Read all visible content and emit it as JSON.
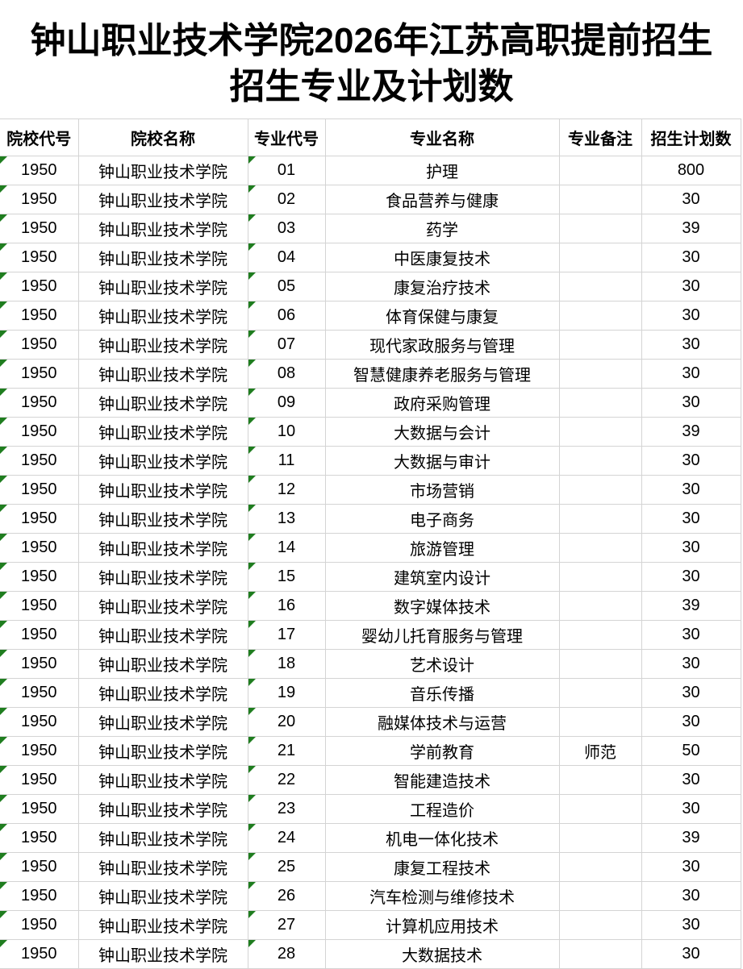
{
  "title": {
    "line1": "钟山职业技术学院2026年江苏高职提前招生",
    "line2": "招生专业及计划数"
  },
  "table": {
    "headers": [
      "院校代号",
      "院校名称",
      "专业代号",
      "专业名称",
      "专业备注",
      "招生计划数"
    ],
    "rows": [
      {
        "college_code": "1950",
        "college_name": "钟山职业技术学院",
        "major_code": "01",
        "major_name": "护理",
        "major_note": "",
        "plan_count": "800"
      },
      {
        "college_code": "1950",
        "college_name": "钟山职业技术学院",
        "major_code": "02",
        "major_name": "食品营养与健康",
        "major_note": "",
        "plan_count": "30"
      },
      {
        "college_code": "1950",
        "college_name": "钟山职业技术学院",
        "major_code": "03",
        "major_name": "药学",
        "major_note": "",
        "plan_count": "39"
      },
      {
        "college_code": "1950",
        "college_name": "钟山职业技术学院",
        "major_code": "04",
        "major_name": "中医康复技术",
        "major_note": "",
        "plan_count": "30"
      },
      {
        "college_code": "1950",
        "college_name": "钟山职业技术学院",
        "major_code": "05",
        "major_name": "康复治疗技术",
        "major_note": "",
        "plan_count": "30"
      },
      {
        "college_code": "1950",
        "college_name": "钟山职业技术学院",
        "major_code": "06",
        "major_name": "体育保健与康复",
        "major_note": "",
        "plan_count": "30"
      },
      {
        "college_code": "1950",
        "college_name": "钟山职业技术学院",
        "major_code": "07",
        "major_name": "现代家政服务与管理",
        "major_note": "",
        "plan_count": "30"
      },
      {
        "college_code": "1950",
        "college_name": "钟山职业技术学院",
        "major_code": "08",
        "major_name": "智慧健康养老服务与管理",
        "major_note": "",
        "plan_count": "30"
      },
      {
        "college_code": "1950",
        "college_name": "钟山职业技术学院",
        "major_code": "09",
        "major_name": "政府采购管理",
        "major_note": "",
        "plan_count": "30"
      },
      {
        "college_code": "1950",
        "college_name": "钟山职业技术学院",
        "major_code": "10",
        "major_name": "大数据与会计",
        "major_note": "",
        "plan_count": "39"
      },
      {
        "college_code": "1950",
        "college_name": "钟山职业技术学院",
        "major_code": "11",
        "major_name": "大数据与审计",
        "major_note": "",
        "plan_count": "30"
      },
      {
        "college_code": "1950",
        "college_name": "钟山职业技术学院",
        "major_code": "12",
        "major_name": "市场营销",
        "major_note": "",
        "plan_count": "30"
      },
      {
        "college_code": "1950",
        "college_name": "钟山职业技术学院",
        "major_code": "13",
        "major_name": "电子商务",
        "major_note": "",
        "plan_count": "30"
      },
      {
        "college_code": "1950",
        "college_name": "钟山职业技术学院",
        "major_code": "14",
        "major_name": "旅游管理",
        "major_note": "",
        "plan_count": "30"
      },
      {
        "college_code": "1950",
        "college_name": "钟山职业技术学院",
        "major_code": "15",
        "major_name": "建筑室内设计",
        "major_note": "",
        "plan_count": "30"
      },
      {
        "college_code": "1950",
        "college_name": "钟山职业技术学院",
        "major_code": "16",
        "major_name": "数字媒体技术",
        "major_note": "",
        "plan_count": "39"
      },
      {
        "college_code": "1950",
        "college_name": "钟山职业技术学院",
        "major_code": "17",
        "major_name": "婴幼儿托育服务与管理",
        "major_note": "",
        "plan_count": "30"
      },
      {
        "college_code": "1950",
        "college_name": "钟山职业技术学院",
        "major_code": "18",
        "major_name": "艺术设计",
        "major_note": "",
        "plan_count": "30"
      },
      {
        "college_code": "1950",
        "college_name": "钟山职业技术学院",
        "major_code": "19",
        "major_name": "音乐传播",
        "major_note": "",
        "plan_count": "30"
      },
      {
        "college_code": "1950",
        "college_name": "钟山职业技术学院",
        "major_code": "20",
        "major_name": "融媒体技术与运营",
        "major_note": "",
        "plan_count": "30"
      },
      {
        "college_code": "1950",
        "college_name": "钟山职业技术学院",
        "major_code": "21",
        "major_name": "学前教育",
        "major_note": "师范",
        "plan_count": "50"
      },
      {
        "college_code": "1950",
        "college_name": "钟山职业技术学院",
        "major_code": "22",
        "major_name": "智能建造技术",
        "major_note": "",
        "plan_count": "30"
      },
      {
        "college_code": "1950",
        "college_name": "钟山职业技术学院",
        "major_code": "23",
        "major_name": "工程造价",
        "major_note": "",
        "plan_count": "30"
      },
      {
        "college_code": "1950",
        "college_name": "钟山职业技术学院",
        "major_code": "24",
        "major_name": "机电一体化技术",
        "major_note": "",
        "plan_count": "39"
      },
      {
        "college_code": "1950",
        "college_name": "钟山职业技术学院",
        "major_code": "25",
        "major_name": "康复工程技术",
        "major_note": "",
        "plan_count": "30"
      },
      {
        "college_code": "1950",
        "college_name": "钟山职业技术学院",
        "major_code": "26",
        "major_name": "汽车检测与维修技术",
        "major_note": "",
        "plan_count": "30"
      },
      {
        "college_code": "1950",
        "college_name": "钟山职业技术学院",
        "major_code": "27",
        "major_name": "计算机应用技术",
        "major_note": "",
        "plan_count": "30"
      },
      {
        "college_code": "1950",
        "college_name": "钟山职业技术学院",
        "major_code": "28",
        "major_name": "大数据技术",
        "major_note": "",
        "plan_count": "30"
      }
    ]
  },
  "colors": {
    "text_indicator_green": "#1f7d1f",
    "gridline_gray": "#d4d4d4",
    "text_black": "#000000",
    "background_white": "#ffffff"
  }
}
